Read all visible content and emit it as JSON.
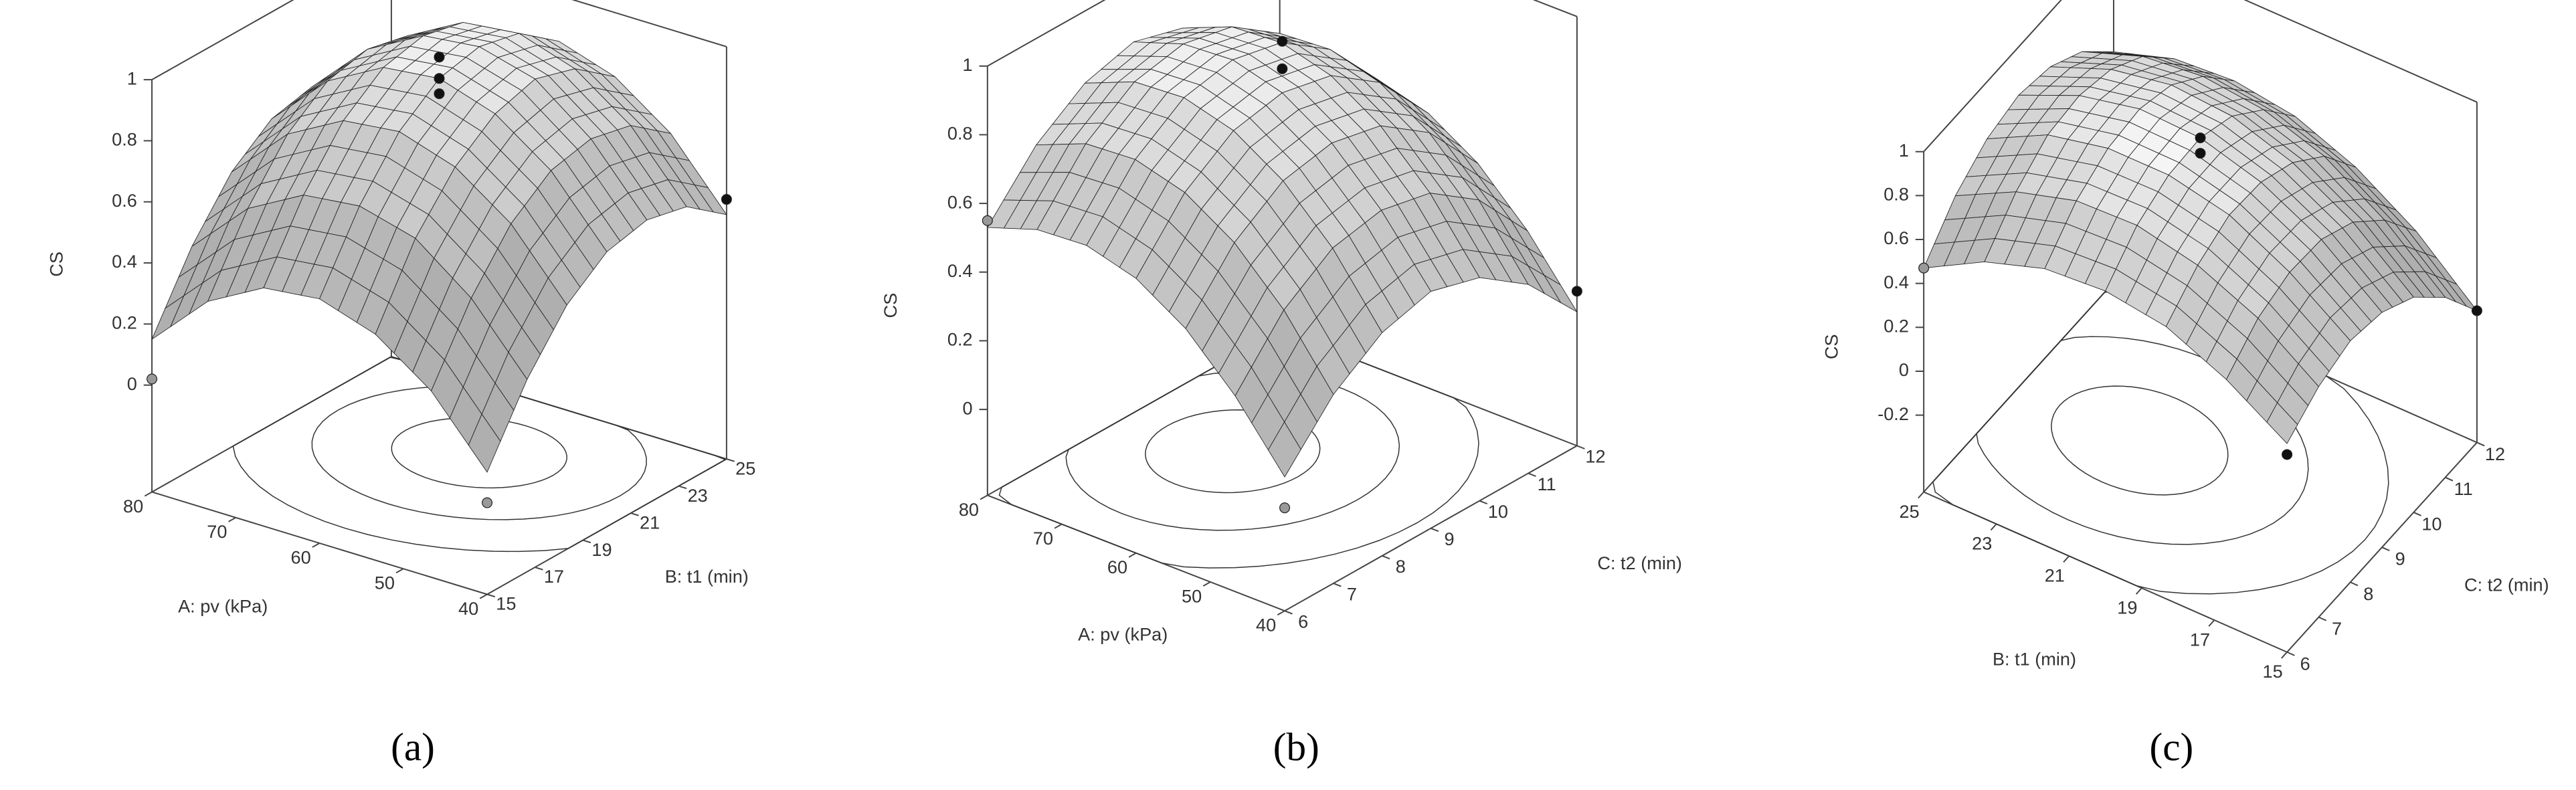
{
  "chart_data": [
    {
      "type": "surface",
      "panel_label": "(a)",
      "xlabel": "A: pv (kPa)",
      "ylabel": "B: t1 (min)",
      "zlabel": "CS",
      "xlim": [
        40,
        80
      ],
      "xticks": [
        40,
        50,
        60,
        70,
        80
      ],
      "ylim": [
        15,
        25
      ],
      "yticks": [
        15,
        17,
        19,
        21,
        23,
        25
      ],
      "zlim": [
        -0.35,
        1
      ],
      "zticks": [
        0,
        0.2,
        0.4,
        0.6,
        0.8,
        1
      ],
      "surface": {
        "x": [
          40,
          46.67,
          53.33,
          60,
          66.67,
          73.33,
          80
        ],
        "y": [
          15,
          16.67,
          18.33,
          20,
          21.67,
          23.33,
          25
        ],
        "z": [
          [
            0.05,
            0.26,
            0.39,
            0.45,
            0.43,
            0.33,
            0.15
          ],
          [
            0.28,
            0.49,
            0.63,
            0.68,
            0.66,
            0.56,
            0.38
          ],
          [
            0.45,
            0.66,
            0.79,
            0.85,
            0.83,
            0.73,
            0.55
          ],
          [
            0.55,
            0.76,
            0.89,
            0.95,
            0.93,
            0.83,
            0.65
          ],
          [
            0.58,
            0.79,
            0.93,
            0.98,
            0.96,
            0.86,
            0.68
          ],
          [
            0.55,
            0.76,
            0.89,
            0.95,
            0.93,
            0.83,
            0.65
          ],
          [
            0.45,
            0.66,
            0.79,
            0.85,
            0.83,
            0.73,
            0.55
          ]
        ]
      },
      "points": {
        "x": [
          60,
          60,
          60,
          40,
          80,
          40
        ],
        "y": [
          20,
          20,
          20,
          25,
          15,
          15
        ],
        "z": [
          1.02,
          0.95,
          0.9,
          0.5,
          0.02,
          -0.05
        ],
        "colors": [
          "#111111",
          "#111111",
          "#111111",
          "#111111",
          "#999999",
          "#999999"
        ]
      }
    },
    {
      "type": "surface",
      "panel_label": "(b)",
      "xlabel": "A: pv (kPa)",
      "ylabel": "C: t2 (min)",
      "zlabel": "CS",
      "xlim": [
        40,
        80
      ],
      "xticks": [
        40,
        50,
        60,
        70,
        80
      ],
      "ylim": [
        6,
        12
      ],
      "yticks": [
        6,
        7,
        8,
        9,
        10,
        11,
        12
      ],
      "zlim": [
        -0.25,
        1
      ],
      "zticks": [
        0,
        0.2,
        0.4,
        0.6,
        0.8,
        1
      ],
      "surface": {
        "x": [
          40,
          46.67,
          53.33,
          60,
          66.67,
          73.33,
          80
        ],
        "y": [
          6,
          7,
          8,
          9,
          10,
          11,
          12
        ],
        "z": [
          [
            0.14,
            0.32,
            0.46,
            0.55,
            0.59,
            0.58,
            0.53
          ],
          [
            0.3,
            0.49,
            0.63,
            0.72,
            0.76,
            0.75,
            0.69
          ],
          [
            0.4,
            0.59,
            0.73,
            0.82,
            0.86,
            0.85,
            0.79
          ],
          [
            0.44,
            0.62,
            0.76,
            0.85,
            0.89,
            0.88,
            0.83
          ],
          [
            0.4,
            0.59,
            0.73,
            0.82,
            0.86,
            0.85,
            0.79
          ],
          [
            0.3,
            0.49,
            0.63,
            0.72,
            0.76,
            0.75,
            0.69
          ],
          [
            0.14,
            0.32,
            0.46,
            0.55,
            0.59,
            0.58,
            0.53
          ]
        ]
      },
      "points": {
        "x": [
          60,
          60,
          40,
          80,
          40
        ],
        "y": [
          9,
          9,
          12,
          6,
          6
        ],
        "z": [
          1.0,
          0.92,
          0.2,
          0.55,
          0.05
        ],
        "colors": [
          "#111111",
          "#111111",
          "#111111",
          "#999999",
          "#999999"
        ]
      }
    },
    {
      "type": "surface",
      "panel_label": "(c)",
      "xlabel": "B: t1 (min)",
      "ylabel": "C: t2 (min)",
      "zlabel": "CS",
      "xlim": [
        15,
        25
      ],
      "xticks": [
        15,
        17,
        19,
        21,
        23,
        25
      ],
      "ylim": [
        6,
        12
      ],
      "yticks": [
        6,
        7,
        8,
        9,
        10,
        11,
        12
      ],
      "zlim": [
        -0.55,
        1
      ],
      "zticks": [
        -0.2,
        0,
        0.2,
        0.4,
        0.6,
        0.8,
        1
      ],
      "surface": {
        "x": [
          15,
          16.67,
          18.33,
          20,
          21.67,
          23.33,
          25
        ],
        "y": [
          6,
          7,
          8,
          9,
          10,
          11,
          12
        ],
        "z": [
          [
            0.4,
            0.57,
            0.69,
            0.73,
            0.71,
            0.62,
            0.47
          ],
          [
            0.5,
            0.69,
            0.81,
            0.87,
            0.86,
            0.78,
            0.64
          ],
          [
            0.55,
            0.74,
            0.88,
            0.94,
            0.94,
            0.88,
            0.74
          ],
          [
            0.52,
            0.73,
            0.87,
            0.95,
            0.96,
            0.9,
            0.78
          ],
          [
            0.43,
            0.65,
            0.8,
            0.89,
            0.91,
            0.86,
            0.75
          ],
          [
            0.27,
            0.5,
            0.67,
            0.76,
            0.79,
            0.76,
            0.66
          ],
          [
            0.05,
            0.29,
            0.46,
            0.57,
            0.61,
            0.59,
            0.5
          ]
        ]
      },
      "points": {
        "x": [
          20,
          20,
          15,
          15,
          25
        ],
        "y": [
          9,
          9,
          6,
          12,
          6
        ],
        "z": [
          0.95,
          0.88,
          0.35,
          0.05,
          0.47
        ],
        "colors": [
          "#111111",
          "#111111",
          "#111111",
          "#111111",
          "#999999"
        ]
      }
    }
  ]
}
